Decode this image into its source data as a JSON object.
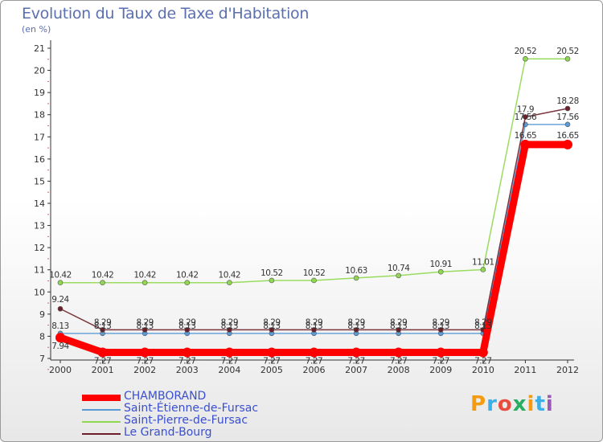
{
  "header": {
    "title": "Evolution du Taux de Taxe d'Habitation",
    "unit": "(en %)"
  },
  "logo": {
    "text": "Proxiti",
    "colors": [
      "#f39c12",
      "#3cb0e6",
      "#e74c3c",
      "#27ae60",
      "#f39c12",
      "#3cb0e6",
      "#9b59b6"
    ]
  },
  "chart_data": {
    "type": "line",
    "title": "Evolution du Taux de Taxe d'Habitation",
    "ylabel": "(en %)",
    "xlabel": "",
    "x": [
      "2000",
      "2001",
      "2002",
      "2003",
      "2004",
      "2005",
      "2006",
      "2007",
      "2008",
      "2009",
      "2010",
      "2011",
      "2012"
    ],
    "ylim": [
      7,
      21
    ],
    "yticks": [
      "7",
      "8",
      "9",
      "10",
      "11",
      "12",
      "13",
      "14",
      "15",
      "16",
      "17",
      "18",
      "19",
      "20",
      "21"
    ],
    "grid": false,
    "legend_position": "bottom-left",
    "series": [
      {
        "name": "CHAMBORAND",
        "color": "#ff0000",
        "values": [
          7.94,
          7.27,
          7.27,
          7.27,
          7.27,
          7.27,
          7.27,
          7.27,
          7.27,
          7.27,
          7.27,
          16.65,
          16.65
        ],
        "labels": [
          "7.94",
          "7.27",
          "7.27",
          "7.27",
          "7.27",
          "7.27",
          "7.27",
          "7.27",
          "7.27",
          "7.27",
          "7.27",
          "16.65",
          "16.65"
        ]
      },
      {
        "name": "Saint-Étienne-de-Fursac",
        "color": "#5b9bd5",
        "values": [
          8.13,
          8.13,
          8.13,
          8.13,
          8.13,
          8.13,
          8.13,
          8.13,
          8.13,
          8.13,
          8.13,
          17.56,
          17.56
        ],
        "labels": [
          "8.13",
          "8.13",
          "8.13",
          "8.13",
          "8.13",
          "8.13",
          "8.13",
          "8.13",
          "8.13",
          "8.13",
          "8.13",
          "17.56",
          "17.56"
        ]
      },
      {
        "name": "Saint-Pierre-de-Fursac",
        "color": "#8fd84f",
        "values": [
          10.42,
          10.42,
          10.42,
          10.42,
          10.42,
          10.52,
          10.52,
          10.63,
          10.74,
          10.91,
          11.01,
          20.52,
          20.52
        ],
        "labels": [
          "10.42",
          "10.42",
          "10.42",
          "10.42",
          "10.42",
          "10.52",
          "10.52",
          "10.63",
          "10.74",
          "10.91",
          "11.01",
          "20.52",
          "20.52"
        ]
      },
      {
        "name": "Le Grand-Bourg",
        "color": "#6b1f2a",
        "values": [
          9.24,
          8.29,
          8.29,
          8.29,
          8.29,
          8.29,
          8.29,
          8.29,
          8.29,
          8.29,
          8.29,
          17.9,
          18.28
        ],
        "labels": [
          "9.24",
          "8.29",
          "8.29",
          "8.29",
          "8.29",
          "8.29",
          "8.29",
          "8.29",
          "8.29",
          "8.29",
          "8.29",
          "17.9",
          "18.28"
        ]
      }
    ]
  }
}
